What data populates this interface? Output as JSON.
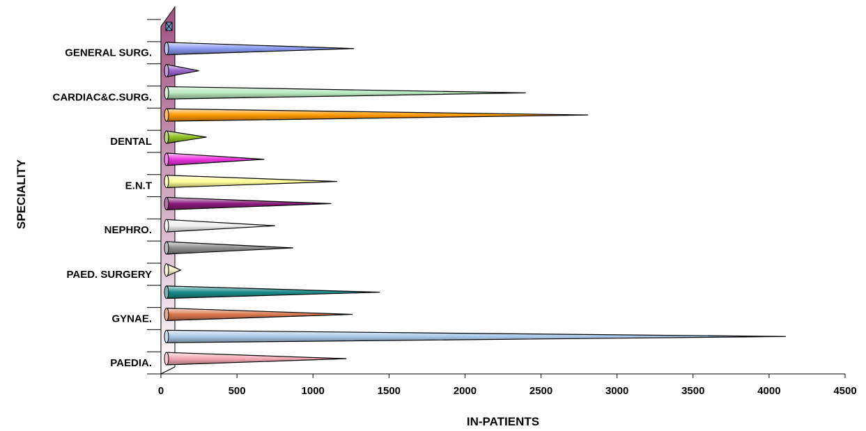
{
  "chart_data": {
    "type": "bar",
    "orientation": "horizontal",
    "xlabel": "IN-PATIENTS",
    "ylabel": "SPECIALITY",
    "xlim": [
      0,
      4500
    ],
    "x_ticks": [
      0,
      500,
      1000,
      1500,
      2000,
      2500,
      3000,
      3500,
      4000,
      4500
    ],
    "grid": false,
    "legend": "none",
    "bar_shape": "cone",
    "categories_bottom_to_top": [
      {
        "label": "PAEDIA.",
        "value": 1220,
        "color": "#f4a7b5"
      },
      {
        "label": "",
        "value": 4110,
        "color": "#a9c8e8"
      },
      {
        "label": "GYNAE.",
        "value": 1260,
        "color": "#d9784f"
      },
      {
        "label": "",
        "value": 1440,
        "color": "#1a8a8a"
      },
      {
        "label": "PAED. SURGERY",
        "value": 130,
        "color": "#f2efc8"
      },
      {
        "label": "",
        "value": 870,
        "color": "#8c8c8c"
      },
      {
        "label": "NEPHRO.",
        "value": 750,
        "color": "#f0f0f0"
      },
      {
        "label": "",
        "value": 1120,
        "color": "#8b1a7a"
      },
      {
        "label": "E.N.T",
        "value": 1160,
        "color": "#ffff99"
      },
      {
        "label": "",
        "value": 680,
        "color": "#ee33dd"
      },
      {
        "label": "DENTAL",
        "value": 300,
        "color": "#8fbf20"
      },
      {
        "label": "",
        "value": 2810,
        "color": "#ff9900"
      },
      {
        "label": "CARDIAC&C.SURG.",
        "value": 2400,
        "color": "#b8e8c0"
      },
      {
        "label": "",
        "value": 250,
        "color": "#9966cc"
      },
      {
        "label": "GENERAL SURG.",
        "value": 1270,
        "color": "#8899ee"
      },
      {
        "label": "",
        "value": 0,
        "color": "#6699cc"
      }
    ],
    "wall_color": "#a05080"
  }
}
